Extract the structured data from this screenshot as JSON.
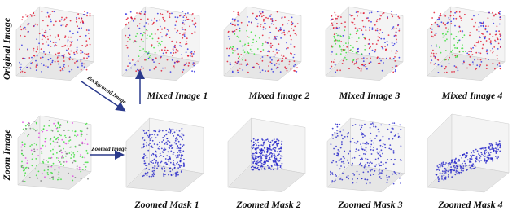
{
  "row_labels": {
    "original": "Original Image",
    "zoom": "Zoom Image"
  },
  "arrows": {
    "background": "Background Image",
    "zoomed": "Zoomed Image"
  },
  "mixed": [
    "Mixed Image 1",
    "Mixed Image 2",
    "Mixed Image 3",
    "Mixed Image 4"
  ],
  "masks": [
    "Zoomed Mask 1",
    "Zoomed Mask 2",
    "Zoomed Mask 3",
    "Zoomed Mask 4"
  ]
}
